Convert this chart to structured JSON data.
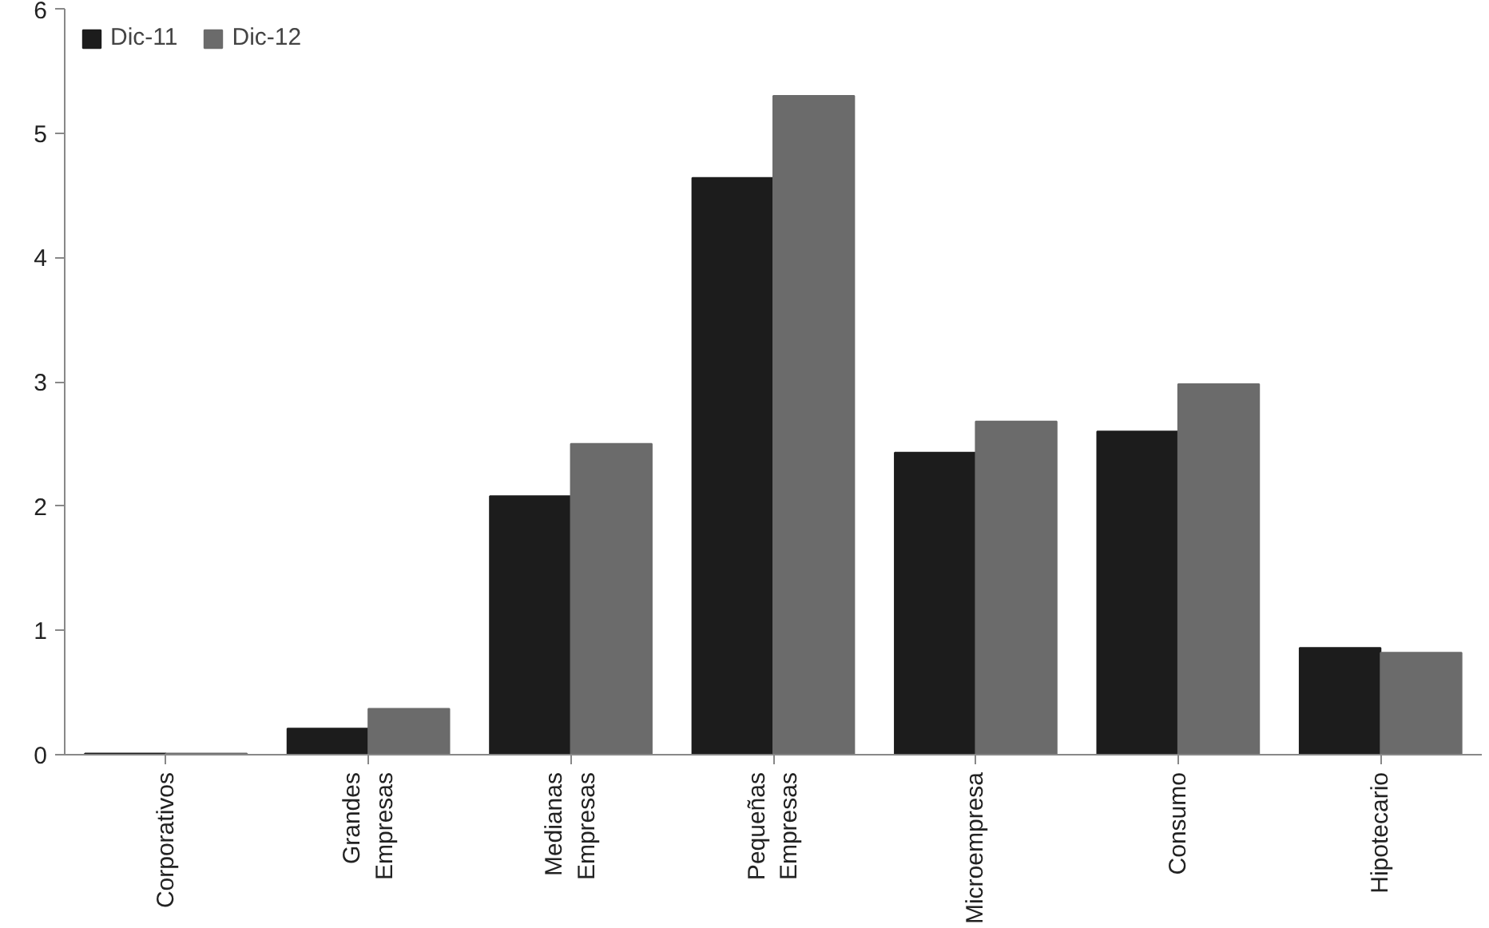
{
  "chart_data": {
    "type": "bar",
    "categories": [
      "Corporativos",
      "Grandes Empresas",
      "Medianas Empresas",
      "Pequeñas Empresas",
      "Microempresa",
      "Consumo",
      "Hipotecario"
    ],
    "series": [
      {
        "name": "Dic-11",
        "color": "#1c1c1c",
        "values": [
          0.01,
          0.21,
          2.08,
          4.64,
          2.43,
          2.6,
          0.86
        ]
      },
      {
        "name": "Dic-12",
        "color": "#6b6b6b",
        "values": [
          0.01,
          0.37,
          2.5,
          5.3,
          2.68,
          2.98,
          0.82
        ]
      }
    ],
    "ylim": [
      0,
      6
    ],
    "yticks": [
      0,
      1,
      2,
      3,
      4,
      5,
      6
    ],
    "grid": false,
    "legend": "top left"
  }
}
